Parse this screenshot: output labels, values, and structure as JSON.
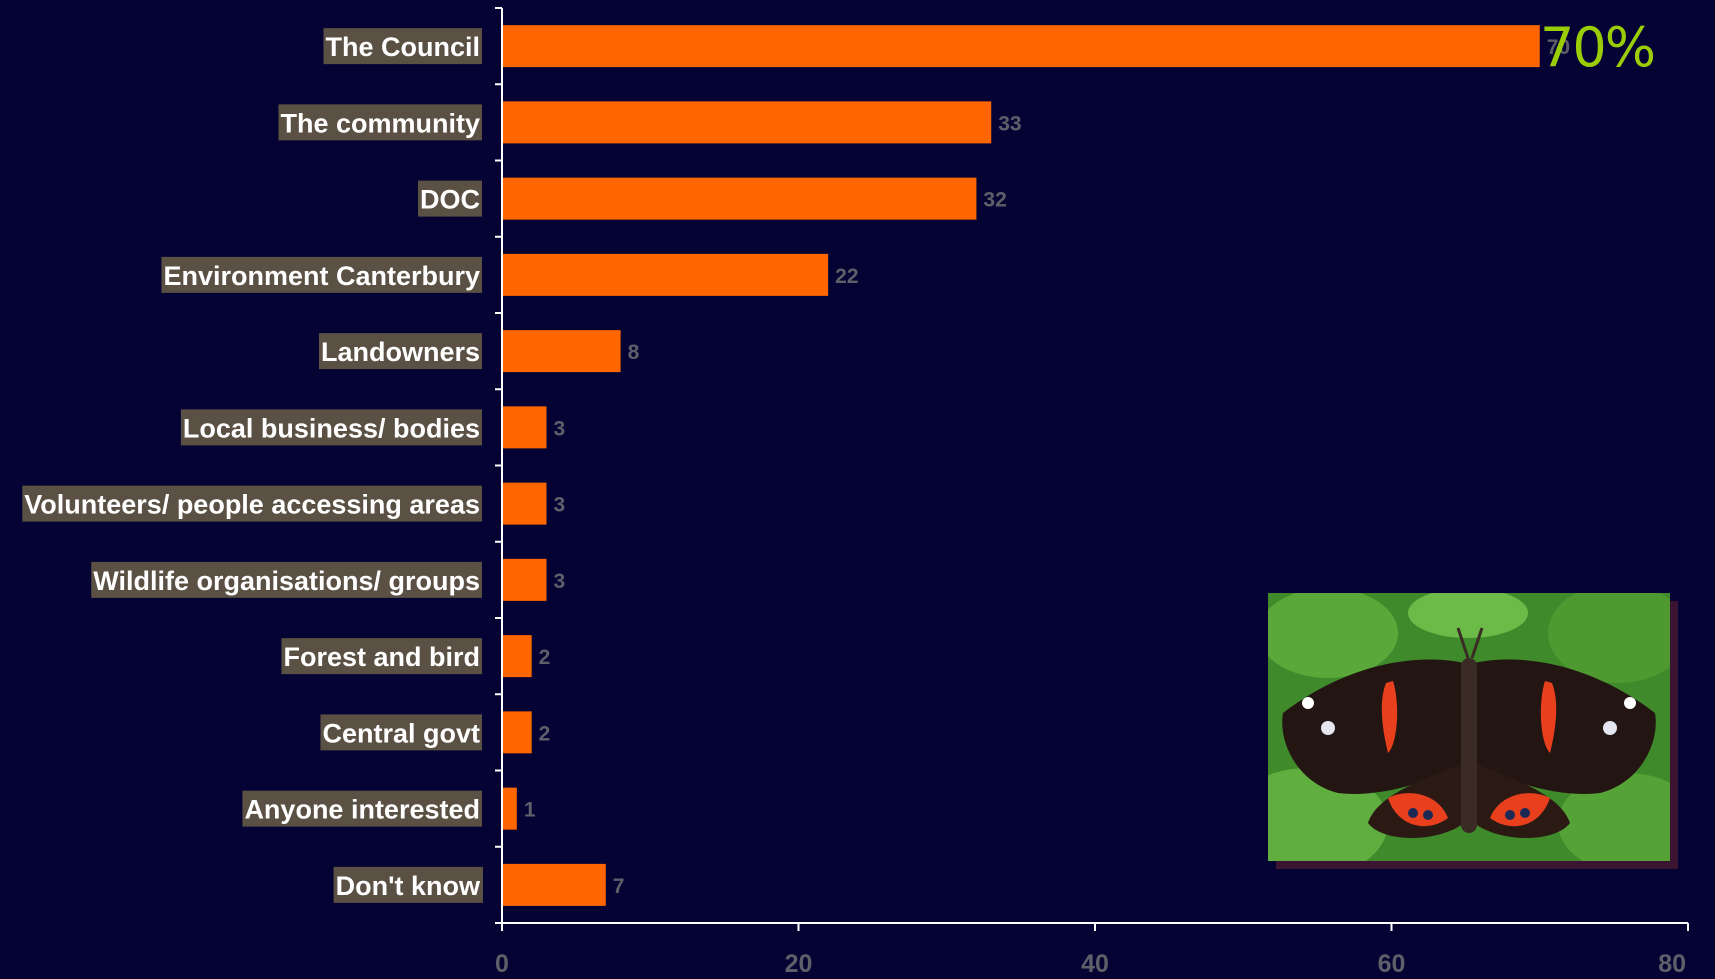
{
  "chart_data": {
    "type": "bar",
    "orientation": "horizontal",
    "categories": [
      "The Council",
      "The community",
      "DOC",
      "Environment Canterbury",
      "Landowners",
      "Local business/ bodies",
      "Volunteers/ people accessing areas",
      "Wildlife organisations/ groups",
      "Forest and bird",
      "Central govt",
      "Anyone interested",
      "Don't know"
    ],
    "values": [
      70,
      33,
      32,
      22,
      8,
      3,
      3,
      3,
      2,
      2,
      1,
      7
    ],
    "xlim": [
      0,
      80
    ],
    "xticks": [
      "0",
      "20",
      "40",
      "60",
      "80"
    ],
    "bar_color": "#ff6600",
    "background": "#050334",
    "grid": false,
    "legend": false
  },
  "callout": {
    "text": "70%",
    "color": "#9acd05"
  },
  "image": {
    "icon": "red-admiral-butterfly-photo"
  }
}
